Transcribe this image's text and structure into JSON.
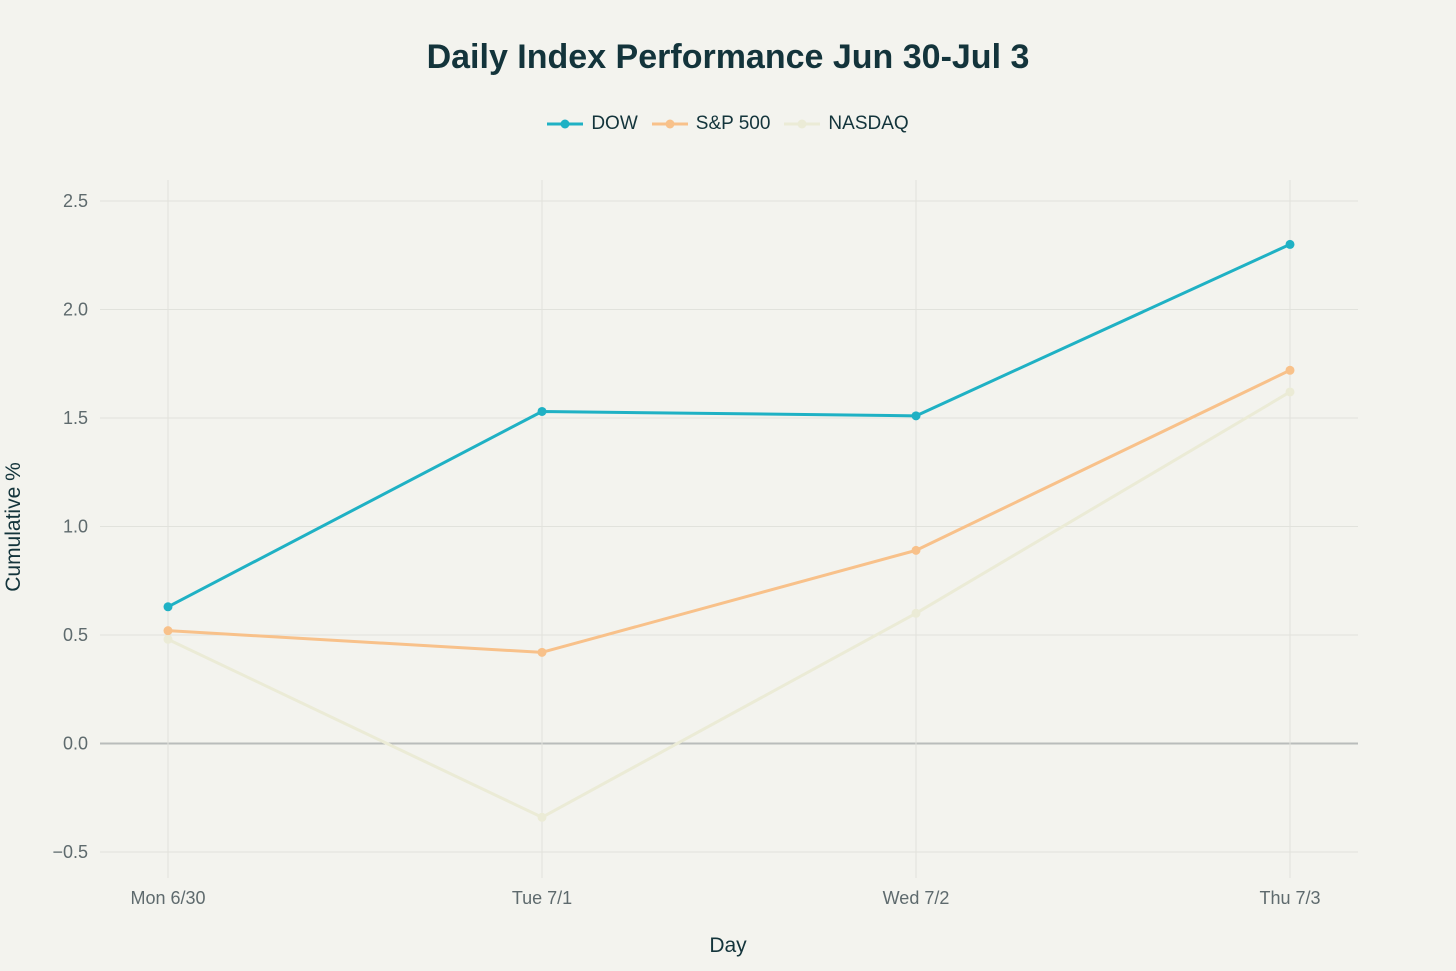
{
  "chart_data": {
    "type": "line",
    "title": "Daily Index Performance Jun 30-Jul 3",
    "xlabel": "Day",
    "ylabel": "Cumulative %",
    "categories": [
      "Mon 6/30",
      "Tue 7/1",
      "Wed 7/2",
      "Thu 7/3"
    ],
    "ylim": [
      -0.6,
      2.6
    ],
    "yticks": [
      -0.5,
      0,
      0.5,
      1,
      1.5,
      2,
      2.5
    ],
    "ytick_labels": [
      "−0.5",
      "0.0",
      "0.5",
      "1.0",
      "1.5",
      "2.0",
      "2.5"
    ],
    "grid": true,
    "legend_position": "top-center",
    "series": [
      {
        "name": "DOW",
        "color": "#1fb1c4",
        "values": [
          0.63,
          1.53,
          1.51,
          2.3
        ]
      },
      {
        "name": "S&P 500",
        "color": "#f8c18a",
        "values": [
          0.52,
          0.42,
          0.89,
          1.72
        ]
      },
      {
        "name": "NASDAQ",
        "color": "#ebebd6",
        "values": [
          0.48,
          -0.34,
          0.6,
          1.62
        ]
      }
    ]
  }
}
